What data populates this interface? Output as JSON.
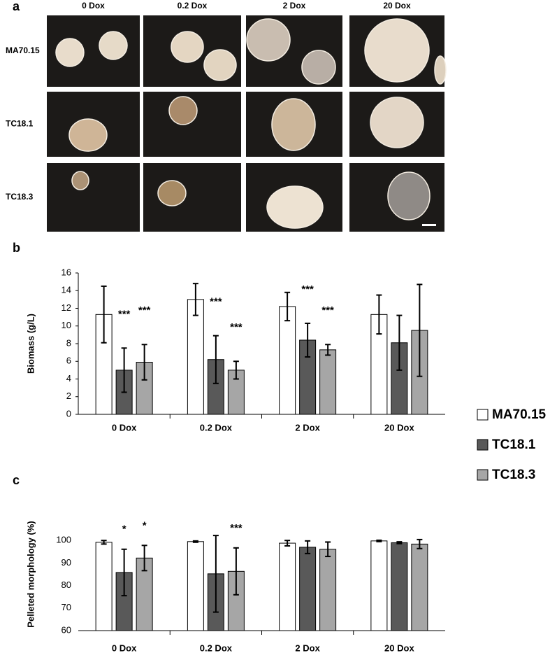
{
  "panel_a": {
    "label": "a",
    "columns": [
      "0 Dox",
      "0.2 Dox",
      "2 Dox",
      "20 Dox"
    ],
    "rows": [
      "MA70.15",
      "TC18.1",
      "TC18.3"
    ]
  },
  "chart_data": [
    {
      "type": "bar",
      "panel_label": "b",
      "y_label": "Biomass (g/L)",
      "categories": [
        "0 Dox",
        "0.2 Dox",
        "2 Dox",
        "20 Dox"
      ],
      "ylim": [
        0,
        16
      ],
      "yticks": [
        0,
        2,
        4,
        6,
        8,
        10,
        12,
        14,
        16
      ],
      "series": [
        {
          "name": "MA70.15",
          "color": "#ffffff",
          "values": [
            11.3,
            13.0,
            12.2,
            11.3
          ],
          "errors": [
            3.2,
            1.8,
            1.6,
            2.2
          ],
          "significance": [
            null,
            null,
            null,
            null
          ]
        },
        {
          "name": "TC18.1",
          "color": "#595959",
          "values": [
            5.0,
            6.2,
            8.4,
            8.1
          ],
          "errors": [
            2.5,
            2.7,
            1.9,
            3.1
          ],
          "significance": [
            "***",
            "***",
            "***",
            null
          ]
        },
        {
          "name": "TC18.3",
          "color": "#a6a6a6",
          "values": [
            5.9,
            5.0,
            7.3,
            9.5
          ],
          "errors": [
            2.0,
            1.0,
            0.6,
            5.2
          ],
          "significance": [
            "***",
            "***",
            "***",
            null
          ]
        }
      ]
    },
    {
      "type": "bar",
      "panel_label": "c",
      "y_label": "Pelleted morphology (%)",
      "categories": [
        "0 Dox",
        "0.2 Dox",
        "2 Dox",
        "20 Dox"
      ],
      "ylim": [
        60,
        110
      ],
      "yticks": [
        60,
        70,
        80,
        90,
        100
      ],
      "series": [
        {
          "name": "MA70.15",
          "color": "#ffffff",
          "values": [
            99.2,
            99.5,
            98.8,
            99.8
          ],
          "errors": [
            0.8,
            0.3,
            1.2,
            0.3
          ],
          "significance": [
            null,
            null,
            null,
            null
          ]
        },
        {
          "name": "TC18.1",
          "color": "#595959",
          "values": [
            85.8,
            85.2,
            97.0,
            99.0
          ],
          "errors": [
            10.3,
            17,
            2.8,
            0.4
          ],
          "significance": [
            "*",
            null,
            null,
            null
          ]
        },
        {
          "name": "TC18.3",
          "color": "#a6a6a6",
          "values": [
            92.2,
            86.3,
            96.1,
            98.4
          ],
          "errors": [
            5.6,
            10.4,
            3.2,
            2.0
          ],
          "significance": [
            "*",
            "***",
            null,
            null
          ]
        }
      ]
    }
  ]
}
